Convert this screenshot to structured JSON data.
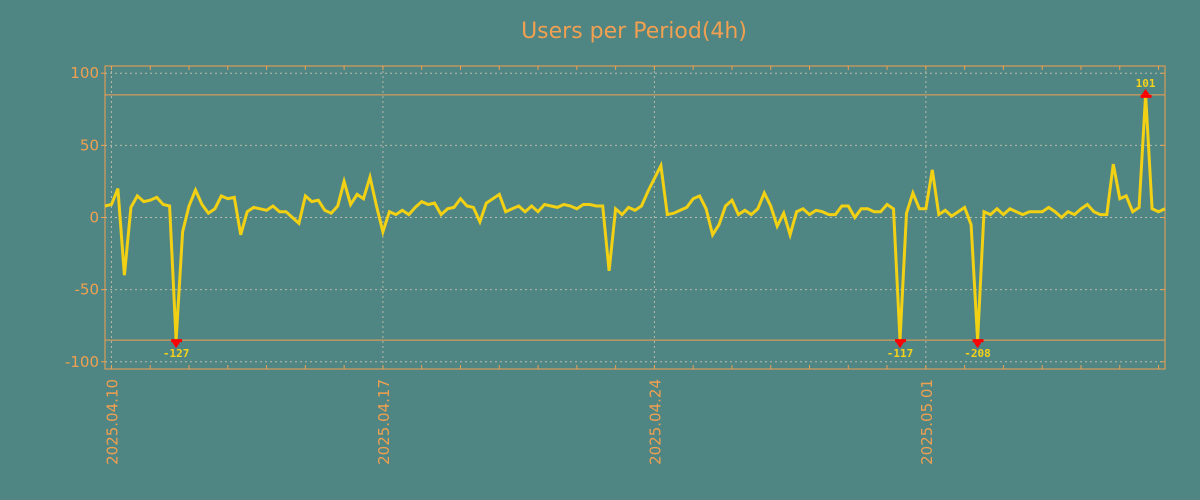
{
  "chart_data": {
    "type": "line",
    "title": "Users per Period(4h)",
    "xlabel": "",
    "ylabel": "",
    "interval_hours": 4,
    "x_start": "2025-04-09 20:00",
    "ylim": [
      -105,
      105
    ],
    "yticks": [
      100,
      50,
      0,
      -50,
      -100
    ],
    "ytick_labels": [
      "100",
      "50",
      "0",
      "-50",
      "-100"
    ],
    "xtick_labels": [
      "2025.04.10",
      "2025.04.17",
      "2025.04.24",
      "2025.05.01"
    ],
    "xtick_index": [
      1,
      43,
      85,
      127
    ],
    "grid": true,
    "threshold_lines": [
      85,
      -85
    ],
    "series": [
      {
        "name": "Users",
        "color": "#f2d014",
        "values": [
          8,
          9,
          20,
          -40,
          7,
          15,
          11,
          12,
          14,
          9,
          8,
          -127,
          -10,
          8,
          19,
          9,
          3,
          6,
          15,
          13,
          14,
          -12,
          4,
          7,
          6,
          5,
          8,
          4,
          4,
          0,
          -4,
          15,
          11,
          12,
          5,
          3,
          8,
          25,
          9,
          16,
          13,
          28,
          8,
          -10,
          4,
          2,
          5,
          2,
          7,
          11,
          9,
          10,
          2,
          6,
          7,
          13,
          8,
          7,
          -3,
          10,
          13,
          16,
          4,
          6,
          8,
          4,
          8,
          4,
          9,
          8,
          7,
          9,
          8,
          6,
          9,
          9,
          8,
          8,
          -37,
          6,
          2,
          7,
          5,
          8,
          18,
          27,
          36,
          2,
          3,
          5,
          7,
          13,
          15,
          6,
          -12,
          -5,
          8,
          12,
          2,
          5,
          2,
          6,
          17,
          8,
          -6,
          3,
          -12,
          4,
          6,
          2,
          5,
          4,
          2,
          2,
          8,
          8,
          0,
          6,
          6,
          4,
          4,
          9,
          6,
          -117,
          3,
          17,
          6,
          6,
          33,
          2,
          5,
          1,
          4,
          7,
          -5,
          -208,
          4,
          2,
          6,
          2,
          6,
          4,
          2,
          4,
          4,
          4,
          7,
          4,
          0,
          4,
          2,
          6,
          9,
          4,
          2,
          2,
          37,
          13,
          15,
          4,
          7,
          101,
          6,
          4,
          6
        ]
      }
    ],
    "annotations": [
      {
        "index": 11,
        "label": "-127",
        "direction": "down"
      },
      {
        "index": 123,
        "label": "-117",
        "direction": "down"
      },
      {
        "index": 135,
        "label": "-208",
        "direction": "down"
      },
      {
        "index": 161,
        "label": "101",
        "direction": "up"
      }
    ],
    "colors": {
      "background": "#4f8684",
      "axis": "#f0a050",
      "grid": "#b9b9a8",
      "line": "#f2d014",
      "marker": "#ff0000"
    }
  }
}
